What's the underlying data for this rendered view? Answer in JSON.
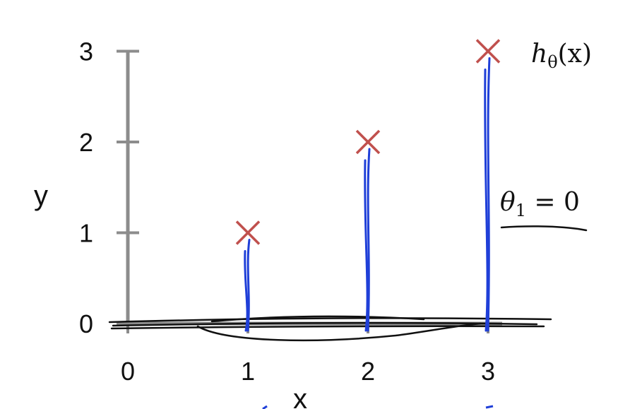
{
  "chart_data": {
    "type": "scatter",
    "title": "",
    "xlabel": "x",
    "ylabel": "y",
    "xlim": [
      0,
      3
    ],
    "ylim": [
      0,
      3
    ],
    "x_ticks": [
      "0",
      "1",
      "2",
      "3"
    ],
    "y_ticks": [
      "0",
      "1",
      "2",
      "3"
    ],
    "grid": false,
    "series": [
      {
        "points": [
          {
            "x": 1,
            "y": 1
          },
          {
            "x": 2,
            "y": 2
          },
          {
            "x": 3,
            "y": 3
          }
        ]
      }
    ],
    "annotations": {
      "hypothesis": {
        "main": "h",
        "sub": "θ",
        "rest": "(x)"
      },
      "theta": {
        "main": "θ",
        "sub": "1",
        "rest": " = 0"
      }
    },
    "colors": {
      "axis": "#8c8c8c",
      "marker": "#c0504d",
      "error_lines": "#1f3fd8",
      "ink": "#111111"
    }
  }
}
